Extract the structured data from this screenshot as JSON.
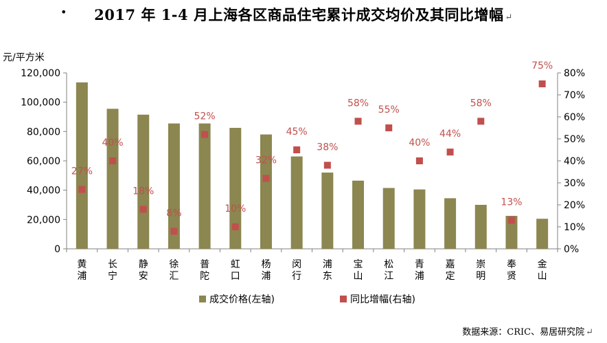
{
  "title": "2017 年 1-4 月上海各区商品住宅累计成交均价及其同比增幅",
  "title_bullet": "•",
  "para_mark": "↵",
  "source": "数据来源：CRIC、易居研究院",
  "chart_data": {
    "type": "bar",
    "ylabel_left": "元/平方米",
    "ylim_left": [
      0,
      120000
    ],
    "ylim_right": [
      0,
      80
    ],
    "left_ticks": [
      "0",
      "20,000",
      "40,000",
      "60,000",
      "80,000",
      "100,000",
      "120,000"
    ],
    "right_ticks": [
      "0%",
      "10%",
      "20%",
      "30%",
      "40%",
      "50%",
      "60%",
      "70%",
      "80%"
    ],
    "categories": [
      "黄浦",
      "长宁",
      "静安",
      "徐汇",
      "普陀",
      "虹口",
      "杨浦",
      "闵行",
      "浦东",
      "宝山",
      "松江",
      "青浦",
      "嘉定",
      "崇明",
      "奉贤",
      "金山"
    ],
    "series": [
      {
        "name": "成交价格(左轴)",
        "axis": "left",
        "kind": "bar",
        "color": "#8c8650",
        "values": [
          113500,
          95500,
          91500,
          85500,
          85500,
          82500,
          78000,
          63000,
          52000,
          46500,
          41500,
          40500,
          34500,
          30000,
          22500,
          20500
        ]
      },
      {
        "name": "同比增幅(右轴)",
        "axis": "right",
        "kind": "marker",
        "color": "#c0504d",
        "values": [
          27,
          40,
          18,
          8,
          52,
          10,
          32,
          45,
          38,
          58,
          55,
          40,
          44,
          58,
          13,
          75
        ],
        "labels": [
          "27%",
          "40%",
          "18%",
          "8%",
          "52%",
          "10%",
          "32%",
          "45%",
          "38%",
          "58%",
          "55%",
          "40%",
          "44%",
          "58%",
          "13%",
          "75%"
        ]
      }
    ],
    "legend_position": "bottom",
    "grid": false
  }
}
